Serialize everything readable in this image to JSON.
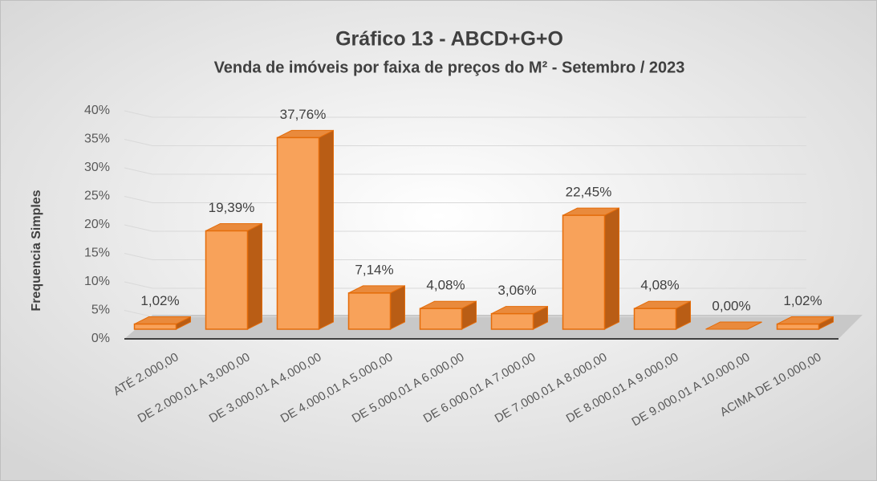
{
  "chart_data": {
    "type": "bar3d",
    "title": "Gráfico 13 - ABCD+G+O",
    "subtitle": "Venda de imóveis por faixa de preços do M² - Setembro / 2023",
    "ylabel": "Frequencia Simples",
    "categories": [
      "ATÉ 2.000,00",
      "DE 2.000,01 A 3.000,00",
      "DE 3.000,01 A 4.000,00",
      "DE 4.000,01 A 5.000,00",
      "DE 5.000,01 A 6.000,00",
      "DE 6.000,01 A 7.000,00",
      "DE 7.000,01 A 8.000,00",
      "DE 8.000,01 A 9.000,00",
      "DE 9.000,01 A 10.000,00",
      "ACIMA DE 10.000,00"
    ],
    "values": [
      1.02,
      19.39,
      37.76,
      7.14,
      4.08,
      3.06,
      22.45,
      4.08,
      0,
      1.02
    ],
    "value_labels": [
      "1,02%",
      "19,39%",
      "37,76%",
      "7,14%",
      "4,08%",
      "3,06%",
      "22,45%",
      "4,08%",
      "0,00%",
      "1,02%"
    ],
    "color": "#f8a25a",
    "ylim": [
      0,
      40
    ],
    "yticks": [
      {
        "value": 0,
        "label": "0%"
      },
      {
        "value": 5,
        "label": "5%"
      },
      {
        "value": 10,
        "label": "10%"
      },
      {
        "value": 15,
        "label": "15%"
      },
      {
        "value": 20,
        "label": "20%"
      },
      {
        "value": 25,
        "label": "25%"
      },
      {
        "value": 30,
        "label": "30%"
      },
      {
        "value": 35,
        "label": "35%"
      },
      {
        "value": 40,
        "label": "40%"
      }
    ],
    "grid": true
  }
}
